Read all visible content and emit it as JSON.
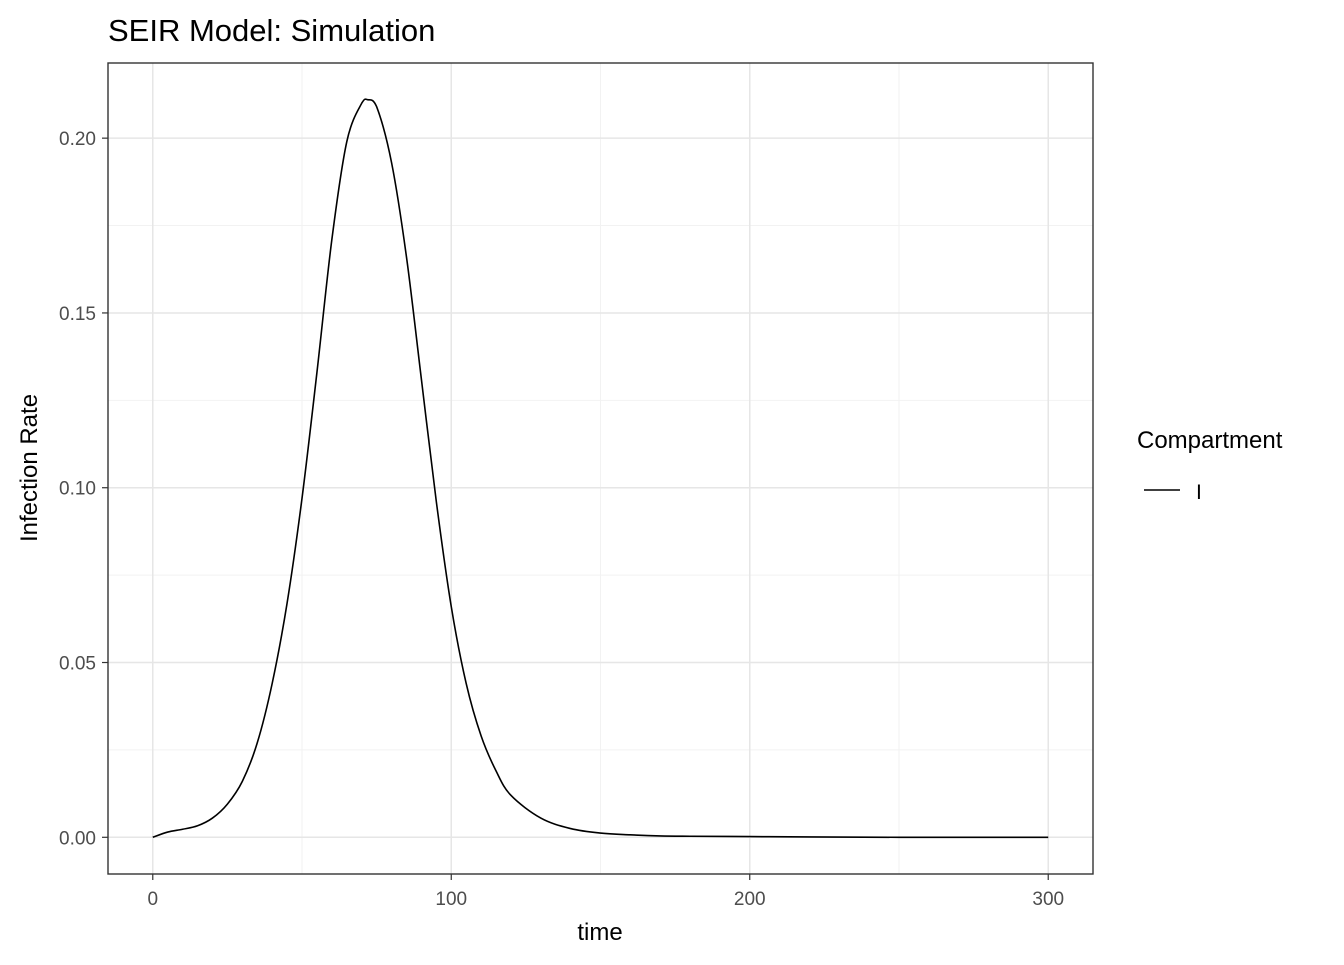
{
  "chart_data": {
    "type": "line",
    "title": "SEIR Model: Simulation",
    "xlabel": "time",
    "ylabel": "Infection Rate",
    "xlim": [
      -15,
      315
    ],
    "ylim": [
      -0.0105,
      0.2215
    ],
    "x_ticks": [
      0,
      100,
      200,
      300
    ],
    "x_tick_labels": [
      "0",
      "100",
      "200",
      "300"
    ],
    "y_ticks": [
      0.0,
      0.05,
      0.1,
      0.15,
      0.2
    ],
    "y_tick_labels": [
      "0.00",
      "0.05",
      "0.10",
      "0.15",
      "0.20"
    ],
    "x_minor_ticks": [
      50,
      150,
      250
    ],
    "y_minor_ticks": [
      0.025,
      0.075,
      0.125,
      0.175
    ],
    "grid": true,
    "legend": {
      "title": "Compartment",
      "position": "right",
      "entries": [
        "I"
      ]
    },
    "series": [
      {
        "name": "I",
        "color": "#000000",
        "x": [
          0,
          5,
          10,
          15,
          20,
          25,
          30,
          35,
          40,
          45,
          50,
          55,
          60,
          65,
          70,
          72,
          75,
          80,
          85,
          90,
          95,
          100,
          105,
          110,
          115,
          120,
          130,
          140,
          150,
          160,
          170,
          180,
          200,
          220,
          250,
          300
        ],
        "y": [
          0.0,
          0.0015,
          0.0023,
          0.0033,
          0.0055,
          0.0095,
          0.016,
          0.027,
          0.044,
          0.067,
          0.097,
          0.133,
          0.171,
          0.199,
          0.21,
          0.211,
          0.209,
          0.193,
          0.166,
          0.131,
          0.096,
          0.066,
          0.044,
          0.029,
          0.019,
          0.012,
          0.0055,
          0.0025,
          0.0012,
          0.0007,
          0.0004,
          0.0003,
          0.0002,
          0.0001,
          0.0,
          0.0
        ]
      }
    ]
  }
}
